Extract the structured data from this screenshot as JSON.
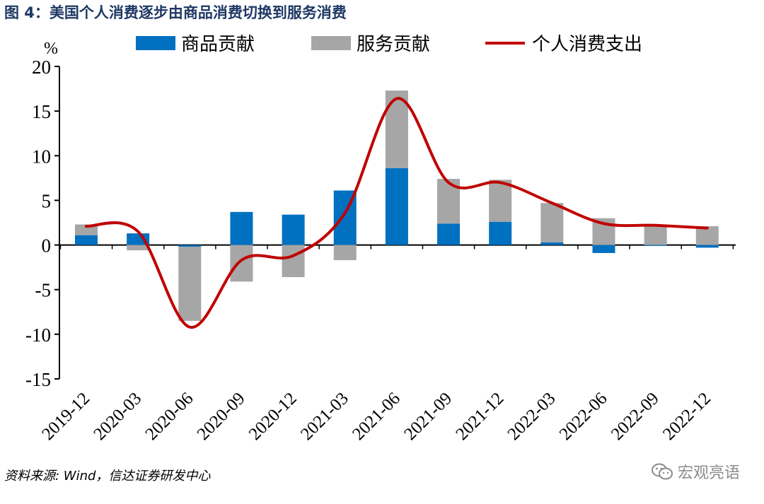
{
  "figure_title": "图 4：美国个人消费逐步由商品消费切换到服务消费",
  "source": "资料来源: Wind，信达证券研发中心",
  "watermark": "宏观亮语",
  "colors": {
    "goods": "#0070c0",
    "services": "#a6a6a6",
    "line": "#c00000",
    "title": "#1f3864"
  },
  "chart_data": {
    "type": "bar",
    "stacked": true,
    "title": "",
    "ylabel": "%",
    "xlabel": "",
    "ylim": [
      -15,
      20
    ],
    "yticks": [
      -15,
      -10,
      -5,
      0,
      5,
      10,
      15,
      20
    ],
    "legend_position": "top",
    "categories": [
      "2019-12",
      "2020-03",
      "2020-06",
      "2020-09",
      "2020-12",
      "2021-03",
      "2021-06",
      "2021-09",
      "2021-12",
      "2022-03",
      "2022-06",
      "2022-09",
      "2022-12"
    ],
    "series": [
      {
        "name": "商品贡献",
        "kind": "bar",
        "values": [
          1.1,
          1.3,
          -0.2,
          3.7,
          3.4,
          6.1,
          8.6,
          2.4,
          2.6,
          0.3,
          -0.9,
          -0.1,
          -0.3
        ]
      },
      {
        "name": "服务贡献",
        "kind": "bar",
        "values": [
          1.2,
          -0.6,
          -8.3,
          -4.1,
          -3.6,
          -1.7,
          8.7,
          5.0,
          4.7,
          4.4,
          3.0,
          2.2,
          2.1
        ]
      },
      {
        "name": "个人消费支出",
        "kind": "line",
        "values": [
          2.1,
          1.5,
          -9.2,
          -1.7,
          -1.2,
          3.6,
          16.4,
          7.0,
          7.0,
          4.7,
          2.4,
          2.2,
          1.9
        ]
      }
    ]
  }
}
